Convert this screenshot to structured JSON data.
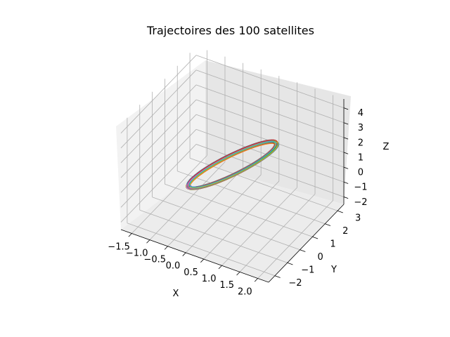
{
  "chart_data": {
    "type": "line3d",
    "title": "Trajectoires des 100 satellites",
    "xlabel": "X",
    "ylabel": "Y",
    "zlabel": "Z",
    "xlim": [
      -1.8,
      2.3
    ],
    "ylim": [
      -2.5,
      3.5
    ],
    "zlim": [
      -2.5,
      4.6
    ],
    "xticks": [
      "−1.5",
      "−1.0",
      "−0.5",
      "0.0",
      "0.5",
      "1.0",
      "1.5",
      "2.0"
    ],
    "yticks": [
      "−2",
      "−1",
      "0",
      "1",
      "2",
      "3"
    ],
    "zticks": [
      "−2",
      "−1",
      "0",
      "1",
      "2",
      "3",
      "4"
    ],
    "grid": true,
    "series_count": 100,
    "orbit": {
      "center": [
        0.25,
        0.5,
        1.0
      ],
      "u": [
        1.2,
        -1.8,
        1.9
      ],
      "v": [
        1.55,
        2.4,
        2.3
      ]
    },
    "colors": [
      "#1f77b4",
      "#ff7f0e",
      "#2ca02c",
      "#d62728",
      "#9467bd",
      "#8c564b",
      "#e377c2",
      "#7f7f7f",
      "#bcbd22",
      "#17becf"
    ]
  }
}
